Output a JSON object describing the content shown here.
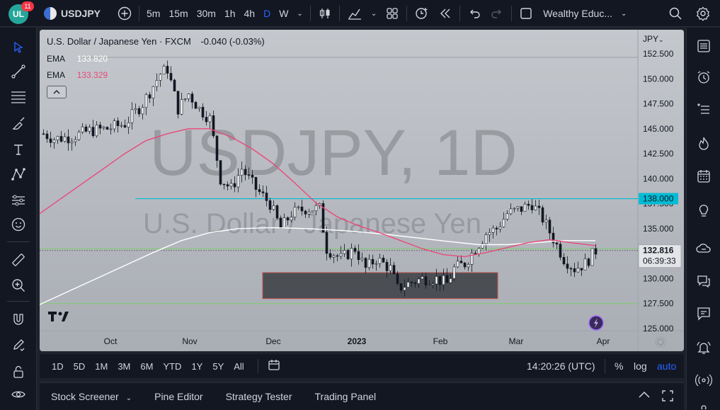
{
  "topbar": {
    "logo_text": "UL",
    "notification_count": "11",
    "symbol": "USDJPY",
    "timeframes": [
      "5m",
      "15m",
      "30m",
      "1h",
      "4h",
      "D",
      "W"
    ],
    "active_timeframe": "D",
    "account_name": "Wealthy Educ..."
  },
  "chart": {
    "pair_name": "U.S. Dollar / Japanese Yen",
    "source": "FXCM",
    "change": "-0.040 (-0.03%)",
    "ema1_label": "EMA",
    "ema1_value": "133.820",
    "ema1_color": "#ffffff",
    "ema2_label": "EMA",
    "ema2_value": "133.329",
    "ema2_color": "#e84a7a",
    "watermark_symbol": "USDJPY, 1D",
    "watermark_name": "U.S. Dollar / Japanese Yen",
    "currency": "JPY",
    "price_axis_labels": [
      "152.500",
      "150.000",
      "147.500",
      "145.000",
      "142.500",
      "140.000",
      "137.500",
      "135.000",
      "132.500",
      "130.000",
      "127.500",
      "125.000"
    ],
    "price_axis_values": [
      152.5,
      150.0,
      147.5,
      145.0,
      142.5,
      140.0,
      137.5,
      135.0,
      132.5,
      130.0,
      127.5,
      125.0
    ],
    "time_axis_labels": [
      "Oct",
      "Nov",
      "Dec",
      "2023",
      "Feb",
      "Mar",
      "Apr"
    ],
    "horizontal_line_label": "138.000",
    "horizontal_line_value": 138.0,
    "horizontal_line_color": "#00bcd4",
    "current_price_label": "132.816",
    "current_price_value": 132.816,
    "countdown": "06:39:33",
    "support_line_value": 127.5,
    "upper_green_value": 133.0,
    "rectangle_low": 128.0,
    "rectangle_high": 130.6
  },
  "bottom_bar": {
    "ranges": [
      "1D",
      "5D",
      "1M",
      "3M",
      "6M",
      "YTD",
      "1Y",
      "5Y",
      "All"
    ],
    "clock": "14:20:26 (UTC)",
    "percent_label": "%",
    "log_label": "log",
    "auto_label": "auto",
    "accent": "#2962ff"
  },
  "bottom_panel": {
    "tabs": [
      "Stock Screener",
      "Pine Editor",
      "Strategy Tester",
      "Trading Panel"
    ]
  }
}
